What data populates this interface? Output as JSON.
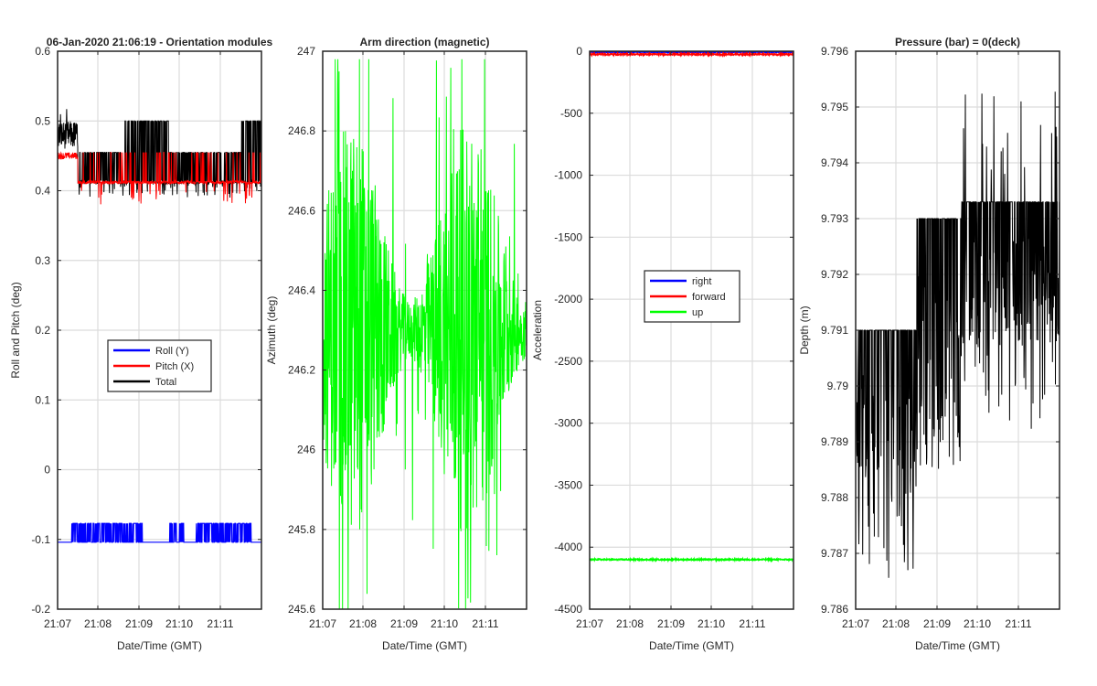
{
  "chart_data": [
    {
      "type": "line",
      "title": "06-Jan-2020 21:06:19 - Orientation modules",
      "xlabel": "Date/Time (GMT)",
      "ylabel": "Roll and Pitch (deg)",
      "ylim": [
        -0.2,
        0.6
      ],
      "yticks": [
        -0.2,
        -0.1,
        0,
        0.1,
        0.2,
        0.3,
        0.4,
        0.5,
        0.6
      ],
      "ytick_labels": [
        "-0.2",
        "-0.1",
        "0",
        "0.1",
        "0.2",
        "0.3",
        "0.4",
        "0.5",
        "0.6"
      ],
      "x_tick_labels": [
        "21:07",
        "21:08",
        "21:09",
        "21:10",
        "21:11"
      ],
      "grid": true,
      "legend_position": "center",
      "series": [
        {
          "name": "Roll (Y)",
          "color": "#0000ff",
          "values_summary": {
            "baseline": -0.104,
            "spikes_to": -0.077,
            "range": [
              -0.104,
              -0.077
            ]
          }
        },
        {
          "name": "Pitch (X)",
          "color": "#ff0000",
          "values_summary": {
            "early_level": 0.45,
            "later_level": 0.41,
            "min": 0.38,
            "max": 0.46
          }
        },
        {
          "name": "Total",
          "color": "#000000",
          "values_summary": {
            "early_level": 0.47,
            "later_level": 0.45,
            "min": 0.39,
            "max": 0.525
          }
        }
      ]
    },
    {
      "type": "line",
      "title": "Arm direction (magnetic)",
      "xlabel": "Date/Time (GMT)",
      "ylabel": "Azimuth (deg)",
      "ylim": [
        245.6,
        247
      ],
      "yticks": [
        245.6,
        245.8,
        246,
        246.2,
        246.4,
        246.6,
        246.8,
        247
      ],
      "ytick_labels": [
        "245.6",
        "245.8",
        "246",
        "246.2",
        "246.4",
        "246.6",
        "246.8",
        "247"
      ],
      "x_tick_labels": [
        "21:07",
        "21:08",
        "21:09",
        "21:10",
        "21:11"
      ],
      "grid": true,
      "series": [
        {
          "name": "",
          "color": "#00ff00",
          "values_summary": {
            "mean": 246.3,
            "min": 245.6,
            "max": 246.98
          }
        }
      ]
    },
    {
      "type": "line",
      "title": "",
      "xlabel": "Date/Time (GMT)",
      "ylabel": "Acceleration",
      "ylim": [
        -4500,
        0
      ],
      "yticks": [
        -4500,
        -4000,
        -3500,
        -3000,
        -2500,
        -2000,
        -1500,
        -1000,
        -500,
        0
      ],
      "ytick_labels": [
        "-4500",
        "-4000",
        "-3500",
        "-3000",
        "-2500",
        "-2000",
        "-1500",
        "-1000",
        "-500",
        "0"
      ],
      "x_tick_labels": [
        "21:07",
        "21:08",
        "21:09",
        "21:10",
        "21:11"
      ],
      "grid": true,
      "legend_position": "center",
      "series": [
        {
          "name": "right",
          "color": "#0000ff",
          "values_summary": {
            "level": -5
          }
        },
        {
          "name": "forward",
          "color": "#ff0000",
          "values_summary": {
            "level": -25
          }
        },
        {
          "name": "up",
          "color": "#00ff00",
          "values_summary": {
            "level": -4100
          }
        }
      ]
    },
    {
      "type": "line",
      "title": "Pressure (bar) = 0(deck)",
      "xlabel": "Date/Time (GMT)",
      "ylabel": "Depth (m)",
      "ylim": [
        9.786,
        9.796
      ],
      "yticks": [
        9.786,
        9.787,
        9.788,
        9.789,
        9.79,
        9.791,
        9.792,
        9.793,
        9.794,
        9.795,
        9.796
      ],
      "ytick_labels": [
        "9.786",
        "9.787",
        "9.788",
        "9.789",
        "9.79",
        "9.791",
        "9.792",
        "9.793",
        "9.794",
        "9.795",
        "9.796"
      ],
      "x_tick_labels": [
        "21:07",
        "21:08",
        "21:09",
        "21:10",
        "21:11"
      ],
      "grid": true,
      "series": [
        {
          "name": "",
          "color": "#000000",
          "values_summary": {
            "early_low": 9.7885,
            "early_high": 9.791,
            "late_low": 9.7907,
            "late_high": 9.7933,
            "min": 9.7864,
            "max": 9.7953
          }
        }
      ]
    }
  ]
}
